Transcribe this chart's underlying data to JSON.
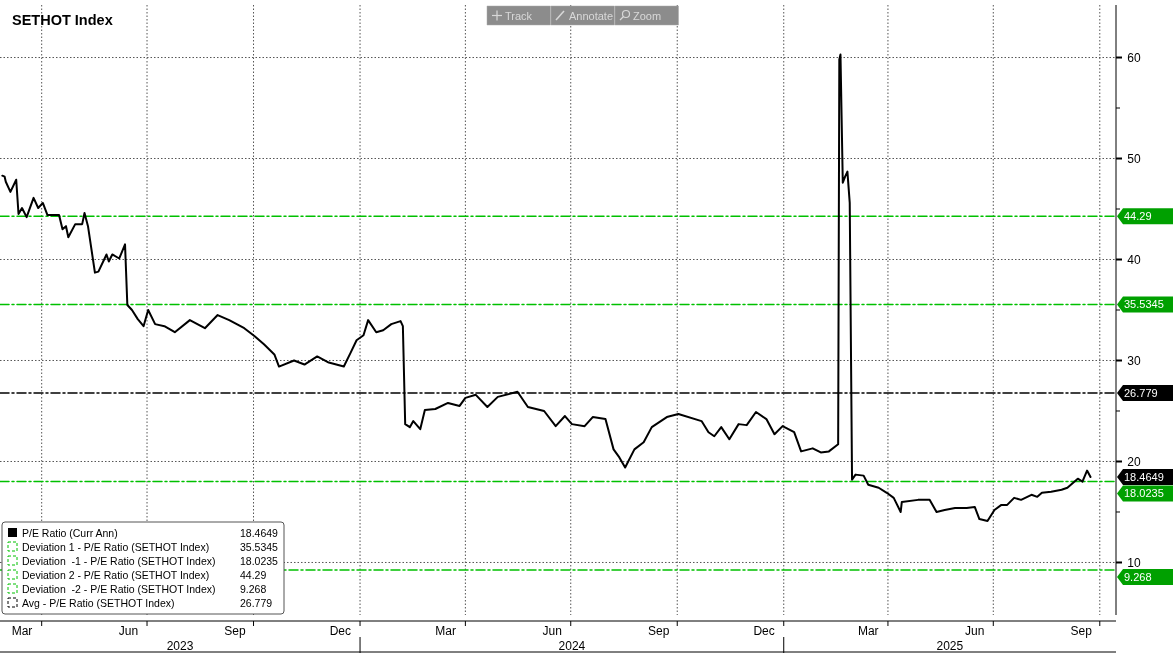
{
  "chart_data": {
    "type": "line",
    "title": "SETHOT Index",
    "xlim": [
      "2023-02-24",
      "2025-10-15"
    ],
    "ylim": [
      4.8,
      65.2
    ],
    "xticks": [
      {
        "value": "2023-03-15",
        "label": "Mar"
      },
      {
        "value": "2023-04-01",
        "label": null
      },
      {
        "value": "2023-06-15",
        "label": "Jun"
      },
      {
        "value": "2023-07-01",
        "label": null
      },
      {
        "value": "2023-09-15",
        "label": "Sep"
      },
      {
        "value": "2023-10-01",
        "label": null
      },
      {
        "value": "2023-12-15",
        "label": "Dec"
      },
      {
        "value": "2024-01-01",
        "label": null
      },
      {
        "value": "2024-03-15",
        "label": "Mar"
      },
      {
        "value": "2024-04-01",
        "label": null
      },
      {
        "value": "2024-06-15",
        "label": "Jun"
      },
      {
        "value": "2024-07-01",
        "label": null
      },
      {
        "value": "2024-09-15",
        "label": "Sep"
      },
      {
        "value": "2024-10-01",
        "label": null
      },
      {
        "value": "2024-12-15",
        "label": "Dec"
      },
      {
        "value": "2025-01-01",
        "label": null
      },
      {
        "value": "2025-03-15",
        "label": "Mar"
      },
      {
        "value": "2025-04-01",
        "label": null
      },
      {
        "value": "2025-06-15",
        "label": "Jun"
      },
      {
        "value": "2025-07-01",
        "label": null
      },
      {
        "value": "2025-09-15",
        "label": "Sep"
      },
      {
        "value": "2025-10-01",
        "label": null
      }
    ],
    "yticks": [
      10,
      {
        "value": 15,
        "label": null
      },
      20,
      {
        "value": 25,
        "label": null
      },
      30,
      {
        "value": 35,
        "label": null
      },
      40,
      {
        "value": 45,
        "label": null
      },
      50,
      {
        "value": 55,
        "label": null
      },
      60
    ],
    "grid": true,
    "legend": "bottom left",
    "series": [
      {
        "name": "P/E Ratio (Curr Ann)",
        "color": "#000000",
        "x": [
          "2023-02-26",
          "2023-02-28",
          "2023-03-01",
          "2023-03-05",
          "2023-03-10",
          "2023-03-12",
          "2023-03-15",
          "2023-03-19",
          "2023-03-25",
          "2023-03-29",
          "2023-04-02",
          "2023-04-06",
          "2023-04-16",
          "2023-04-19",
          "2023-04-22",
          "2023-04-24",
          "2023-04-30",
          "2023-05-06",
          "2023-05-08",
          "2023-05-11",
          "2023-05-17",
          "2023-05-20",
          "2023-05-27",
          "2023-05-29",
          "2023-06-01",
          "2023-06-07",
          "2023-06-12",
          "2023-06-14",
          "2023-06-18",
          "2023-06-23",
          "2023-06-28",
          "2023-07-02",
          "2023-07-08",
          "2023-07-16",
          "2023-07-25",
          "2023-08-07",
          "2023-08-20",
          "2023-08-31",
          "2023-09-10",
          "2023-09-23",
          "2023-10-02",
          "2023-10-10",
          "2023-10-19",
          "2023-10-23",
          "2023-11-05",
          "2023-11-14",
          "2023-11-25",
          "2023-12-05",
          "2023-12-18",
          "2023-12-24",
          "2023-12-29",
          "2024-01-04",
          "2024-01-08",
          "2024-01-15",
          "2024-01-21",
          "2024-01-28",
          "2024-02-05",
          "2024-02-07",
          "2024-02-09",
          "2024-02-13",
          "2024-02-16",
          "2024-02-22",
          "2024-02-26",
          "2024-03-06",
          "2024-03-17",
          "2024-03-27",
          "2024-04-01",
          "2024-04-10",
          "2024-04-20",
          "2024-04-29",
          "2024-05-16",
          "2024-05-25",
          "2024-06-08",
          "2024-06-18",
          "2024-06-26",
          "2024-07-02",
          "2024-07-13",
          "2024-07-20",
          "2024-07-31",
          "2024-08-07",
          "2024-08-12",
          "2024-08-17",
          "2024-08-25",
          "2024-09-02",
          "2024-09-09",
          "2024-09-22",
          "2024-10-02",
          "2024-10-22",
          "2024-10-28",
          "2024-11-02",
          "2024-11-08",
          "2024-11-15",
          "2024-11-23",
          "2024-11-30",
          "2024-12-08",
          "2024-12-17",
          "2024-12-24",
          "2024-12-31",
          "2025-01-10",
          "2025-01-16",
          "2025-01-26",
          "2025-02-02",
          "2025-02-09",
          "2025-02-17",
          "2025-02-18",
          "2025-02-19",
          "2025-02-21",
          "2025-02-23",
          "2025-02-25",
          "2025-02-27",
          "2025-03-01",
          "2025-03-04",
          "2025-03-11",
          "2025-03-15",
          "2025-03-24",
          "2025-03-31",
          "2025-04-06",
          "2025-04-12",
          "2025-04-13",
          "2025-04-27",
          "2025-05-07",
          "2025-05-13",
          "2025-05-20",
          "2025-05-29",
          "2025-06-08",
          "2025-06-15",
          "2025-06-19",
          "2025-06-26",
          "2025-07-02",
          "2025-07-08",
          "2025-07-13",
          "2025-07-19",
          "2025-07-25",
          "2025-08-03",
          "2025-08-08",
          "2025-08-12",
          "2025-08-20",
          "2025-08-29",
          "2025-09-03",
          "2025-09-12",
          "2025-09-16",
          "2025-09-20",
          "2025-09-23"
        ],
        "values": [
          48.3,
          48.2,
          47.7,
          46.7,
          47.9,
          44.5,
          45.1,
          44.2,
          46.1,
          45.1,
          45.6,
          44.4,
          44.4,
          43.0,
          43.3,
          42.2,
          43.5,
          43.5,
          44.6,
          43.3,
          38.7,
          38.8,
          40.5,
          39.8,
          40.5,
          40.1,
          41.5,
          35.5,
          35.0,
          34.1,
          33.4,
          35.0,
          33.6,
          33.4,
          32.8,
          34.0,
          33.2,
          34.5,
          34.0,
          33.2,
          32.4,
          31.6,
          30.6,
          29.4,
          30.0,
          29.6,
          30.4,
          29.8,
          29.4,
          30.8,
          32.0,
          32.5,
          34.0,
          32.8,
          33.0,
          33.6,
          33.9,
          33.4,
          23.7,
          23.4,
          24.0,
          23.2,
          25.1,
          25.2,
          25.8,
          25.5,
          26.3,
          26.6,
          25.4,
          26.4,
          26.9,
          25.4,
          25.0,
          23.5,
          24.5,
          23.7,
          23.5,
          24.4,
          24.2,
          21.2,
          20.4,
          19.4,
          21.2,
          21.9,
          23.4,
          24.4,
          24.7,
          24.0,
          22.9,
          22.5,
          23.4,
          22.2,
          23.7,
          23.6,
          24.9,
          24.2,
          22.7,
          23.5,
          22.9,
          21.0,
          21.3,
          20.9,
          21.0,
          21.7,
          59.8,
          60.3,
          47.6,
          48.2,
          48.7,
          45.6,
          18.2,
          18.7,
          18.6,
          17.7,
          17.4,
          16.9,
          16.4,
          15.0,
          16.0,
          16.2,
          16.2,
          15.0,
          15.2,
          15.4,
          15.4,
          15.5,
          14.3,
          14.1,
          15.2,
          15.7,
          15.7,
          16.4,
          16.2,
          16.7,
          16.5,
          16.9,
          17.0,
          17.2,
          17.4,
          18.3,
          18.0,
          19.1,
          18.4649
        ],
        "value_labels": [
          null,
          null,
          null,
          null,
          null,
          null,
          null,
          null,
          null,
          null,
          null,
          null,
          null,
          null,
          null,
          null,
          null,
          null,
          null,
          null,
          null,
          null,
          null,
          null,
          null,
          null,
          null,
          null,
          null,
          null,
          null,
          null,
          null,
          null,
          null,
          null,
          null,
          null,
          null,
          null,
          null,
          null,
          null,
          null,
          null,
          null,
          null,
          null,
          null,
          null,
          null,
          null,
          null,
          null,
          null,
          null,
          null,
          null,
          null,
          null,
          null,
          null,
          null,
          null,
          null,
          null,
          null,
          null,
          null,
          null,
          null,
          null,
          null,
          null,
          null,
          null,
          null,
          null,
          null,
          null,
          null,
          null,
          null,
          null,
          null,
          null,
          null,
          null,
          null,
          null,
          null,
          null,
          null,
          null,
          null,
          null,
          null,
          null,
          null,
          null,
          null,
          null,
          null,
          null,
          null,
          null,
          null,
          null,
          null,
          null,
          null,
          null,
          null,
          null,
          null,
          null,
          null,
          null,
          null,
          null,
          null,
          null,
          null,
          null,
          null,
          null,
          null,
          null,
          null,
          null,
          null,
          null,
          null,
          null,
          null,
          null,
          null,
          null,
          null,
          null,
          null,
          null,
          null
        ]
      },
      {
        "name": "Deviation 1 - P/E Ratio (SETHOT Index)",
        "color": "#00c000",
        "line_style": "dashed",
        "x": [
          "2023-02-24",
          "2025-10-15"
        ],
        "values": [
          35.5345,
          35.5345
        ],
        "value_labels": [
          null,
          "35.5345"
        ]
      },
      {
        "name": "Deviation  -1 - P/E Ratio (SETHOT Index)",
        "color": "#00c000",
        "line_style": "dashed",
        "x": [
          "2023-02-24",
          "2025-10-15"
        ],
        "values": [
          18.0235,
          18.0235
        ],
        "value_labels": [
          null,
          "18.0235"
        ]
      },
      {
        "name": "Deviation 2 - P/E Ratio (SETHOT Index)",
        "color": "#00c000",
        "line_style": "dashed",
        "x": [
          "2023-02-24",
          "2025-10-15"
        ],
        "values": [
          44.29,
          44.29
        ],
        "value_labels": [
          null,
          "44.29"
        ]
      },
      {
        "name": "Deviation  -2 - P/E Ratio (SETHOT Index)",
        "color": "#00c000",
        "line_style": "dashed",
        "x": [
          "2023-02-24",
          "2025-10-15"
        ],
        "values": [
          9.268,
          9.268
        ],
        "value_labels": [
          null,
          "9.268"
        ]
      },
      {
        "name": "Avg - P/E Ratio (SETHOT Index)",
        "color": "#000000",
        "line_style": "dashed",
        "x": [
          "2023-02-24",
          "2025-10-15"
        ],
        "values": [
          26.779,
          26.779
        ],
        "value_labels": [
          null,
          "26.779"
        ]
      }
    ],
    "annotations": [
      "Track",
      "Annotate",
      "Zoom",
      "2023",
      "2024",
      "2025",
      "18.4649"
    ]
  }
}
